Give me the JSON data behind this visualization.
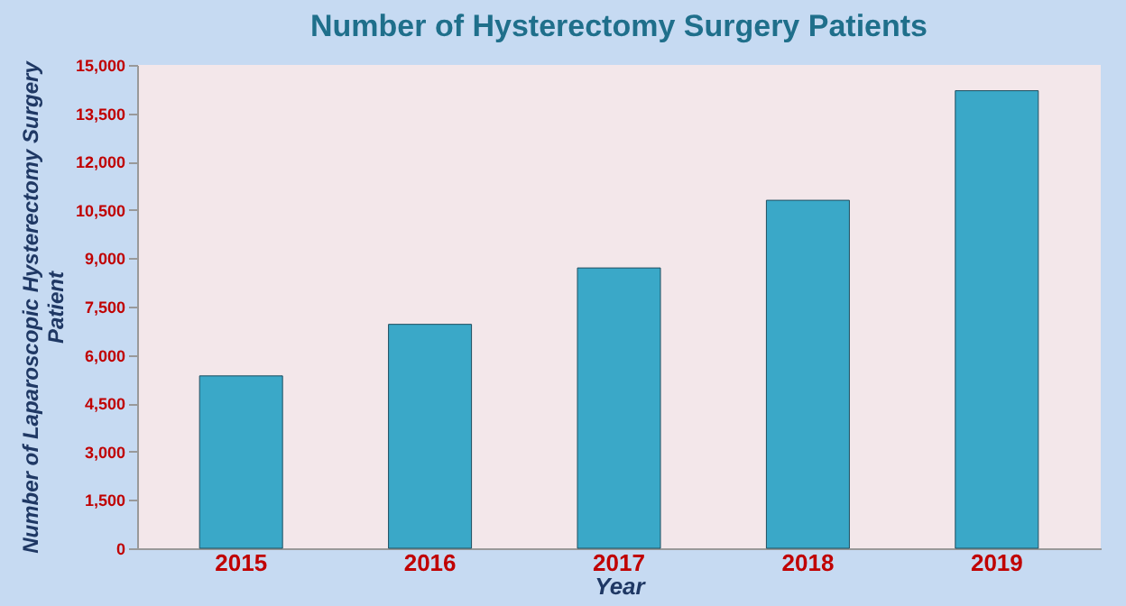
{
  "chart_data": {
    "type": "bar",
    "title": "Number of Hysterectomy Surgery Patients",
    "xlabel": "Year",
    "ylabel": "Number of Laparoscopic Hysterectomy Surgery Patient",
    "categories": [
      "2015",
      "2016",
      "2017",
      "2018",
      "2019"
    ],
    "series": [
      {
        "color": "#3aa8c8",
        "values": [
          5350,
          6950,
          8700,
          10800,
          14200
        ]
      }
    ],
    "ylim": [
      0,
      15000
    ],
    "yticks": [
      0,
      {
        "value": 1500,
        "label": "1,500"
      },
      {
        "value": 3000,
        "label": "3,000"
      },
      {
        "value": 4500,
        "label": "4,500"
      },
      {
        "value": 6000,
        "label": "6,000"
      },
      {
        "value": 7500,
        "label": "7,500"
      },
      {
        "value": 9000,
        "label": "9,000"
      },
      {
        "value": 10500,
        "label": "10,500"
      },
      {
        "value": 12000,
        "label": "12,000"
      },
      {
        "value": 13500,
        "label": "13,500"
      },
      {
        "value": 15000,
        "label": "15,000"
      }
    ],
    "grid": false
  }
}
